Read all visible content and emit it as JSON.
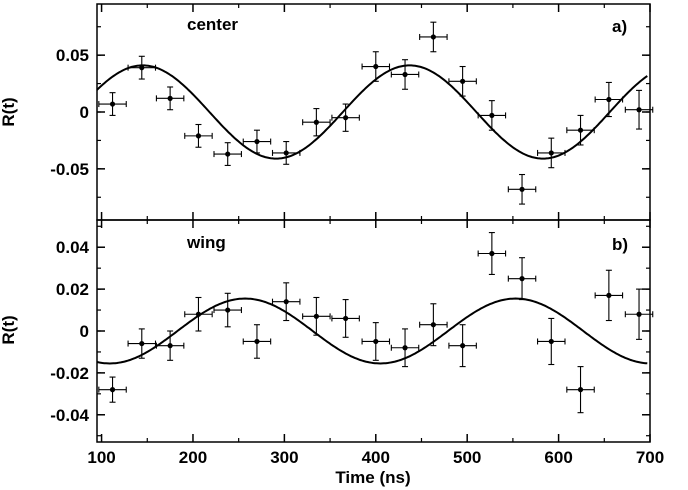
{
  "chart_data": [
    {
      "type": "scatter",
      "panel_tag": "a)",
      "annotation": "center",
      "ylabel": "R(t)",
      "xlim": [
        95,
        700
      ],
      "ylim": [
        -0.095,
        0.095
      ],
      "yticks": [
        0.05,
        0,
        -0.05
      ],
      "ytick_labels": [
        "0.05",
        "0",
        "-0.05"
      ],
      "x_error": 15,
      "points": [
        {
          "x": 112,
          "y": 0.007,
          "yerr": 0.01
        },
        {
          "x": 144,
          "y": 0.039,
          "yerr": 0.01
        },
        {
          "x": 175,
          "y": 0.012,
          "yerr": 0.01
        },
        {
          "x": 206,
          "y": -0.021,
          "yerr": 0.01
        },
        {
          "x": 238,
          "y": -0.037,
          "yerr": 0.01
        },
        {
          "x": 270,
          "y": -0.026,
          "yerr": 0.01
        },
        {
          "x": 302,
          "y": -0.036,
          "yerr": 0.01
        },
        {
          "x": 335,
          "y": -0.009,
          "yerr": 0.012
        },
        {
          "x": 367,
          "y": -0.005,
          "yerr": 0.012
        },
        {
          "x": 400,
          "y": 0.04,
          "yerr": 0.013
        },
        {
          "x": 432,
          "y": 0.033,
          "yerr": 0.013
        },
        {
          "x": 463,
          "y": 0.066,
          "yerr": 0.013
        },
        {
          "x": 495,
          "y": 0.027,
          "yerr": 0.013
        },
        {
          "x": 527,
          "y": -0.003,
          "yerr": 0.013
        },
        {
          "x": 560,
          "y": -0.068,
          "yerr": 0.013
        },
        {
          "x": 592,
          "y": -0.036,
          "yerr": 0.013
        },
        {
          "x": 624,
          "y": -0.016,
          "yerr": 0.013
        },
        {
          "x": 655,
          "y": 0.011,
          "yerr": 0.015
        },
        {
          "x": 688,
          "y": 0.002,
          "yerr": 0.017
        }
      ],
      "fit": {
        "amplitude": 0.041,
        "period": 292,
        "phase_x": 145
      }
    },
    {
      "type": "scatter",
      "panel_tag": "b)",
      "annotation": "wing",
      "ylabel": "R(t)",
      "xlabel": "Time (ns)",
      "xlim": [
        95,
        700
      ],
      "ylim": [
        -0.053,
        0.053
      ],
      "xticks": [
        100,
        200,
        300,
        400,
        500,
        600,
        700
      ],
      "xtick_labels": [
        "100",
        "200",
        "300",
        "400",
        "500",
        "600",
        "700"
      ],
      "yticks": [
        0.04,
        0.02,
        0,
        -0.02,
        -0.04
      ],
      "ytick_labels": [
        "0.04",
        "0.02",
        "0",
        "-0.02",
        "-0.04"
      ],
      "x_error": 15,
      "points": [
        {
          "x": 112,
          "y": -0.028,
          "yerr": 0.006
        },
        {
          "x": 144,
          "y": -0.006,
          "yerr": 0.007
        },
        {
          "x": 175,
          "y": -0.007,
          "yerr": 0.007
        },
        {
          "x": 206,
          "y": 0.008,
          "yerr": 0.008
        },
        {
          "x": 238,
          "y": 0.01,
          "yerr": 0.008
        },
        {
          "x": 270,
          "y": -0.005,
          "yerr": 0.008
        },
        {
          "x": 302,
          "y": 0.014,
          "yerr": 0.009
        },
        {
          "x": 335,
          "y": 0.007,
          "yerr": 0.009
        },
        {
          "x": 367,
          "y": 0.006,
          "yerr": 0.009
        },
        {
          "x": 400,
          "y": -0.005,
          "yerr": 0.009
        },
        {
          "x": 432,
          "y": -0.008,
          "yerr": 0.009
        },
        {
          "x": 463,
          "y": 0.003,
          "yerr": 0.01
        },
        {
          "x": 495,
          "y": -0.007,
          "yerr": 0.01
        },
        {
          "x": 527,
          "y": 0.037,
          "yerr": 0.01
        },
        {
          "x": 560,
          "y": 0.025,
          "yerr": 0.01
        },
        {
          "x": 592,
          "y": -0.005,
          "yerr": 0.011
        },
        {
          "x": 624,
          "y": -0.028,
          "yerr": 0.011
        },
        {
          "x": 655,
          "y": 0.017,
          "yerr": 0.012
        },
        {
          "x": 688,
          "y": 0.008,
          "yerr": 0.012
        }
      ],
      "fit": {
        "amplitude": 0.0155,
        "period": 296,
        "phase_x": 257
      }
    }
  ]
}
